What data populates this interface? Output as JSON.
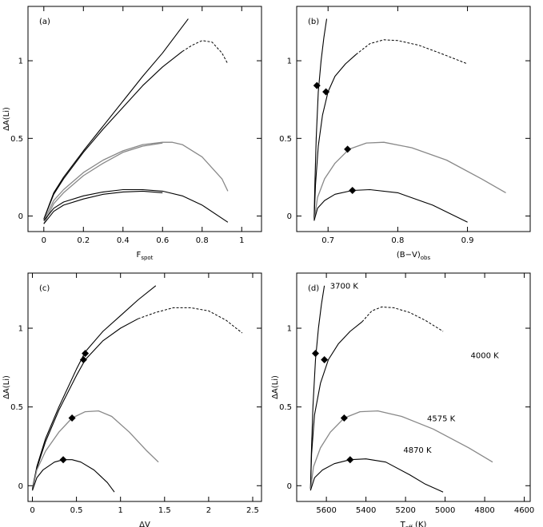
{
  "chart_data": [
    {
      "type": "line",
      "panel_label": "(a)",
      "xlabel": "F",
      "xlabel_sub": "spot",
      "ylabel": "ΔA(Li)",
      "xlim": [
        -0.08,
        1.1
      ],
      "ylim": [
        -0.1,
        1.35
      ],
      "xticks": [
        0,
        0.2,
        0.4,
        0.6,
        0.8,
        1
      ],
      "xtick_labels": [
        "0",
        "0.2",
        "0.4",
        "0.6",
        "0.8",
        "1"
      ],
      "yticks": [
        0,
        0.5,
        1
      ],
      "ytick_labels": [
        "0",
        "0.5",
        "1"
      ],
      "series": [
        {
          "style": "solid",
          "x": [
            0,
            0.05,
            0.1,
            0.2,
            0.3,
            0.4,
            0.5,
            0.6,
            0.73
          ],
          "y": [
            -0.02,
            0.15,
            0.25,
            0.42,
            0.58,
            0.74,
            0.9,
            1.05,
            1.27
          ]
        },
        {
          "style": "solid",
          "x": [
            0,
            0.05,
            0.1,
            0.2,
            0.3,
            0.4,
            0.5,
            0.6,
            0.7
          ],
          "y": [
            -0.02,
            0.14,
            0.24,
            0.41,
            0.56,
            0.7,
            0.84,
            0.96,
            1.06
          ]
        },
        {
          "style": "dashed",
          "x": [
            0.7,
            0.75,
            0.8,
            0.85,
            0.9,
            0.93
          ],
          "y": [
            1.06,
            1.1,
            1.13,
            1.12,
            1.05,
            0.98
          ]
        },
        {
          "style": "gray",
          "x": [
            0,
            0.05,
            0.1,
            0.2,
            0.3,
            0.4,
            0.5,
            0.6,
            0.65,
            0.7,
            0.8,
            0.9,
            0.93
          ],
          "y": [
            -0.03,
            0.1,
            0.17,
            0.28,
            0.36,
            0.42,
            0.46,
            0.475,
            0.475,
            0.46,
            0.38,
            0.24,
            0.16
          ]
        },
        {
          "style": "gray",
          "x": [
            0,
            0.05,
            0.1,
            0.2,
            0.3,
            0.4,
            0.5,
            0.6
          ],
          "y": [
            -0.05,
            0.08,
            0.15,
            0.26,
            0.34,
            0.41,
            0.45,
            0.47
          ]
        },
        {
          "style": "solid",
          "x": [
            0,
            0.05,
            0.1,
            0.2,
            0.3,
            0.4,
            0.5,
            0.6,
            0.7,
            0.8,
            0.93
          ],
          "y": [
            -0.03,
            0.05,
            0.09,
            0.13,
            0.155,
            0.17,
            0.17,
            0.16,
            0.13,
            0.07,
            -0.04
          ]
        },
        {
          "style": "solid",
          "x": [
            0,
            0.05,
            0.1,
            0.2,
            0.3,
            0.4,
            0.5,
            0.6
          ],
          "y": [
            -0.05,
            0.03,
            0.07,
            0.11,
            0.14,
            0.155,
            0.16,
            0.15
          ]
        }
      ],
      "markers": []
    },
    {
      "type": "line",
      "panel_label": "(b)",
      "xlabel": "(B−V)",
      "xlabel_sub": "obs",
      "ylabel": "",
      "xlim": [
        0.655,
        0.99
      ],
      "ylim": [
        -0.1,
        1.35
      ],
      "xticks": [
        0.7,
        0.8,
        0.9
      ],
      "xtick_labels": [
        "0.7",
        "0.8",
        "0.9"
      ],
      "yticks": [
        0,
        0.5,
        1
      ],
      "ytick_labels": [
        "0",
        "0.5",
        "1"
      ],
      "series": [
        {
          "style": "solid",
          "x": [
            0.68,
            0.681,
            0.683,
            0.686,
            0.69,
            0.694,
            0.698
          ],
          "y": [
            -0.02,
            0.2,
            0.5,
            0.8,
            1.0,
            1.15,
            1.27
          ]
        },
        {
          "style": "solid",
          "x": [
            0.68,
            0.682,
            0.686,
            0.692,
            0.7,
            0.71,
            0.725,
            0.74
          ],
          "y": [
            -0.02,
            0.2,
            0.45,
            0.65,
            0.8,
            0.9,
            0.98,
            1.04
          ]
        },
        {
          "style": "dashed",
          "x": [
            0.74,
            0.76,
            0.78,
            0.8,
            0.83,
            0.86,
            0.9
          ],
          "y": [
            1.04,
            1.11,
            1.135,
            1.13,
            1.1,
            1.05,
            0.98
          ]
        },
        {
          "style": "gray",
          "x": [
            0.68,
            0.685,
            0.695,
            0.71,
            0.73,
            0.755,
            0.78,
            0.82,
            0.87,
            0.92,
            0.955
          ],
          "y": [
            -0.03,
            0.12,
            0.24,
            0.34,
            0.43,
            0.47,
            0.475,
            0.44,
            0.36,
            0.24,
            0.15
          ]
        },
        {
          "style": "solid",
          "x": [
            0.68,
            0.685,
            0.695,
            0.71,
            0.735,
            0.76,
            0.8,
            0.85,
            0.9
          ],
          "y": [
            -0.03,
            0.05,
            0.1,
            0.14,
            0.165,
            0.17,
            0.15,
            0.07,
            -0.04
          ]
        }
      ],
      "markers": [
        {
          "x": 0.684,
          "y": 0.84
        },
        {
          "x": 0.697,
          "y": 0.8
        },
        {
          "x": 0.728,
          "y": 0.43
        },
        {
          "x": 0.735,
          "y": 0.165
        }
      ]
    },
    {
      "type": "line",
      "panel_label": "(c)",
      "xlabel": "ΔV",
      "xlabel_sub": "",
      "ylabel": "ΔA(Li)",
      "xlim": [
        -0.05,
        2.6
      ],
      "ylim": [
        -0.1,
        1.35
      ],
      "xticks": [
        0,
        0.5,
        1,
        1.5,
        2,
        2.5
      ],
      "xtick_labels": [
        "0",
        "0.5",
        "1",
        "1.5",
        "2",
        "2.5"
      ],
      "yticks": [
        0,
        0.5,
        1
      ],
      "ytick_labels": [
        "0",
        "0.5",
        "1"
      ],
      "series": [
        {
          "style": "solid",
          "x": [
            0,
            0.05,
            0.15,
            0.3,
            0.5,
            0.6,
            0.8,
            1.0,
            1.2,
            1.4
          ],
          "y": [
            -0.02,
            0.12,
            0.3,
            0.5,
            0.74,
            0.85,
            0.98,
            1.08,
            1.18,
            1.27
          ]
        },
        {
          "style": "solid",
          "x": [
            0,
            0.05,
            0.15,
            0.3,
            0.5,
            0.6,
            0.8,
            1.0,
            1.2
          ],
          "y": [
            -0.02,
            0.11,
            0.28,
            0.48,
            0.7,
            0.8,
            0.92,
            1.0,
            1.06
          ]
        },
        {
          "style": "dashed",
          "x": [
            1.2,
            1.4,
            1.6,
            1.8,
            2.0,
            2.2,
            2.38
          ],
          "y": [
            1.06,
            1.1,
            1.13,
            1.13,
            1.11,
            1.05,
            0.97
          ]
        },
        {
          "style": "gray",
          "x": [
            0,
            0.05,
            0.15,
            0.3,
            0.45,
            0.6,
            0.75,
            0.9,
            1.1,
            1.3,
            1.43
          ],
          "y": [
            -0.03,
            0.1,
            0.22,
            0.34,
            0.43,
            0.47,
            0.475,
            0.44,
            0.34,
            0.22,
            0.15
          ]
        },
        {
          "style": "solid",
          "x": [
            0,
            0.05,
            0.12,
            0.25,
            0.35,
            0.45,
            0.55,
            0.7,
            0.85,
            0.93
          ],
          "y": [
            -0.03,
            0.05,
            0.1,
            0.15,
            0.165,
            0.165,
            0.15,
            0.1,
            0.02,
            -0.04
          ]
        }
      ],
      "markers": [
        {
          "x": 0.6,
          "y": 0.84
        },
        {
          "x": 0.58,
          "y": 0.8
        },
        {
          "x": 0.45,
          "y": 0.43
        },
        {
          "x": 0.35,
          "y": 0.165
        }
      ]
    },
    {
      "type": "line",
      "panel_label": "(d)",
      "xlabel": "T",
      "xlabel_sub": "eff",
      "xlabel_suffix": "(K)",
      "ylabel": "ΔA(Li)",
      "xlim": [
        5750,
        4570
      ],
      "ylim": [
        -0.1,
        1.35
      ],
      "xticks": [
        5600,
        5400,
        5200,
        5000,
        4800,
        4600
      ],
      "xtick_labels": [
        "5600",
        "5400",
        "5200",
        "5000",
        "4800",
        "4600"
      ],
      "yticks": [
        0,
        0.5,
        1
      ],
      "ytick_labels": [
        "0",
        "0.5",
        "1"
      ],
      "series": [
        {
          "style": "solid",
          "x": [
            5680,
            5676,
            5668,
            5655,
            5640,
            5625,
            5610
          ],
          "y": [
            -0.02,
            0.2,
            0.5,
            0.8,
            1.0,
            1.15,
            1.27
          ]
        },
        {
          "style": "solid",
          "x": [
            5680,
            5675,
            5660,
            5630,
            5590,
            5540,
            5480,
            5420
          ],
          "y": [
            -0.02,
            0.2,
            0.45,
            0.65,
            0.8,
            0.9,
            0.98,
            1.04
          ]
        },
        {
          "style": "dashed",
          "x": [
            5420,
            5370,
            5320,
            5260,
            5180,
            5100,
            5010
          ],
          "y": [
            1.04,
            1.11,
            1.135,
            1.13,
            1.1,
            1.05,
            0.98
          ]
        },
        {
          "style": "gray",
          "x": [
            5680,
            5665,
            5630,
            5580,
            5510,
            5430,
            5340,
            5220,
            5060,
            4880,
            4760
          ],
          "y": [
            -0.03,
            0.12,
            0.24,
            0.34,
            0.43,
            0.47,
            0.475,
            0.44,
            0.36,
            0.24,
            0.15
          ]
        },
        {
          "style": "solid",
          "x": [
            5680,
            5660,
            5620,
            5560,
            5480,
            5400,
            5300,
            5180,
            5100,
            5010
          ],
          "y": [
            -0.03,
            0.05,
            0.1,
            0.14,
            0.165,
            0.17,
            0.15,
            0.07,
            0.01,
            -0.04
          ]
        }
      ],
      "markers": [
        {
          "x": 5655,
          "y": 0.84
        },
        {
          "x": 5610,
          "y": 0.8
        },
        {
          "x": 5510,
          "y": 0.43
        },
        {
          "x": 5480,
          "y": 0.165
        }
      ],
      "annotations": [
        {
          "text": "3700 K",
          "x": 5510,
          "y": 1.25
        },
        {
          "text": "4000 K",
          "x": 4800,
          "y": 0.81
        },
        {
          "text": "4575 K",
          "x": 5020,
          "y": 0.41
        },
        {
          "text": "4870 K",
          "x": 5140,
          "y": 0.21
        }
      ]
    }
  ]
}
